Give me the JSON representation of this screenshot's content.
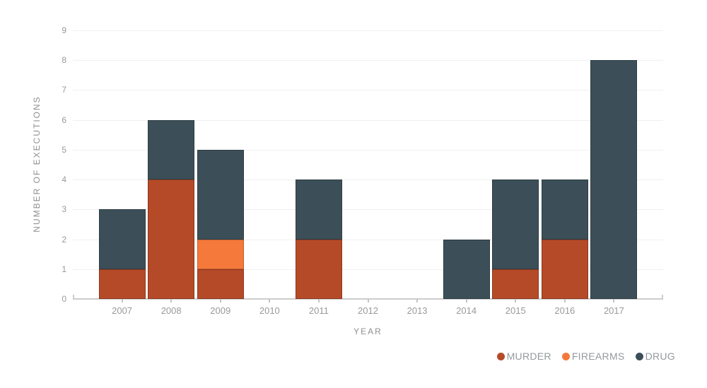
{
  "chart_data": {
    "type": "bar",
    "stacked": true,
    "title": "",
    "xlabel": "YEAR",
    "ylabel": "NUMBER OF EXECUTIONS",
    "categories": [
      "2007",
      "2008",
      "2009",
      "2010",
      "2011",
      "2012",
      "2013",
      "2014",
      "2015",
      "2016",
      "2017"
    ],
    "series": [
      {
        "name": "MURDER",
        "color": "#b54a28",
        "values": [
          1,
          4,
          1,
          0,
          2,
          0,
          0,
          0,
          1,
          2,
          0
        ]
      },
      {
        "name": "FIREARMS",
        "color": "#f5793b",
        "values": [
          0,
          0,
          1,
          0,
          0,
          0,
          0,
          0,
          0,
          0,
          0
        ]
      },
      {
        "name": "DRUG",
        "color": "#3c4f58",
        "values": [
          2,
          2,
          3,
          0,
          2,
          0,
          0,
          2,
          3,
          2,
          8
        ]
      }
    ],
    "totals": [
      3,
      6,
      5,
      0,
      4,
      0,
      0,
      2,
      4,
      4,
      8
    ],
    "y_ticks": [
      "0",
      "1",
      "2",
      "3",
      "4",
      "5",
      "6",
      "7",
      "8",
      "9"
    ],
    "ylim": [
      0,
      9
    ],
    "grid": true,
    "legend_position": "bottom-right"
  }
}
